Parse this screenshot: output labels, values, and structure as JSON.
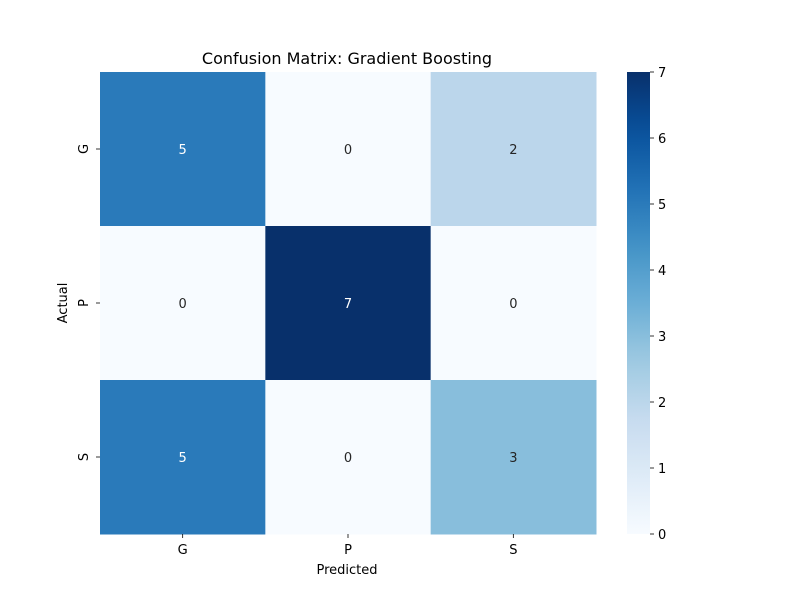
{
  "chart_data": {
    "type": "heatmap",
    "title": "Confusion Matrix: Gradient Boosting",
    "xlabel": "Predicted",
    "ylabel": "Actual",
    "x_categories": [
      "G",
      "P",
      "S"
    ],
    "y_categories": [
      "G",
      "P",
      "S"
    ],
    "values": [
      [
        5,
        0,
        2
      ],
      [
        0,
        7,
        0
      ],
      [
        5,
        0,
        3
      ]
    ],
    "colorbar": {
      "min": 0,
      "max": 7,
      "ticks": [
        "0",
        "1",
        "2",
        "3",
        "4",
        "5",
        "6",
        "7"
      ]
    },
    "colormap": "Blues",
    "annotations": true,
    "grid": false
  }
}
